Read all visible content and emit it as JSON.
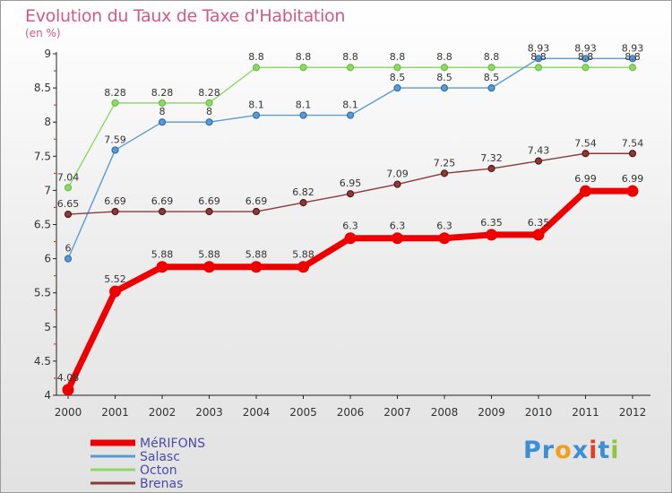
{
  "header": {
    "title": "Evolution du Taux de Taxe d'Habitation",
    "unit": "(en %)"
  },
  "logo": {
    "letters": [
      "P",
      "r",
      "o",
      "x",
      "i",
      "t",
      "i"
    ],
    "colors": [
      "#3b8fd6",
      "#3b8fd6",
      "#f0a020",
      "#3b8fd6",
      "#e0402a",
      "#3b8fd6",
      "#8cc63f"
    ]
  },
  "chart_data": {
    "type": "line",
    "title": "Evolution du Taux de Taxe d'Habitation",
    "ylabel": "(en %)",
    "xlabel": "",
    "x": [
      "2000",
      "2001",
      "2002",
      "2003",
      "2004",
      "2005",
      "2006",
      "2007",
      "2008",
      "2009",
      "2010",
      "2011",
      "2012"
    ],
    "ylim": [
      4,
      9
    ],
    "yticks": [
      "4",
      "4.5",
      "5",
      "5.5",
      "6",
      "6.5",
      "7",
      "7.5",
      "8",
      "8.5",
      "9"
    ],
    "grid": false,
    "legend_position": "bottom-left",
    "series": [
      {
        "name": "MéRIFONS",
        "color": "#ee0000",
        "weight": "thick",
        "values": [
          4.08,
          5.52,
          5.88,
          5.88,
          5.88,
          5.88,
          6.3,
          6.3,
          6.3,
          6.35,
          6.35,
          6.99,
          6.99
        ],
        "labels": [
          "4.08",
          "5.52",
          "5.88",
          "5.88",
          "5.88",
          "5.88",
          "6.3",
          "6.3",
          "6.3",
          "6.35",
          "6.35",
          "6.99",
          "6.99"
        ]
      },
      {
        "name": "Salasc",
        "color": "#5a9bd0",
        "dot": "#2e6fb0",
        "weight": "thin",
        "values": [
          6,
          7.59,
          8,
          8,
          8.1,
          8.1,
          8.1,
          8.5,
          8.5,
          8.5,
          8.93,
          8.93,
          8.93
        ],
        "labels": [
          "6",
          "7.59",
          "8",
          "8",
          "8.1",
          "8.1",
          "8.1",
          "8.5",
          "8.5",
          "8.5",
          "8.93",
          "8.93",
          "8.93"
        ]
      },
      {
        "name": "Octon",
        "color": "#8ed86a",
        "dot": "#6cc13c",
        "weight": "thin",
        "values": [
          7.04,
          8.28,
          8.28,
          8.28,
          8.8,
          8.8,
          8.8,
          8.8,
          8.8,
          8.8,
          8.8,
          8.8,
          8.8
        ],
        "labels": [
          "7.04",
          "8.28",
          "8.28",
          "8.28",
          "8.8",
          "8.8",
          "8.8",
          "8.8",
          "8.8",
          "8.8",
          "8.8",
          "8.8",
          "8.8"
        ]
      },
      {
        "name": "Brenas",
        "color": "#8a3a3a",
        "dot": "#5a1818",
        "weight": "thin",
        "values": [
          6.65,
          6.69,
          6.69,
          6.69,
          6.69,
          6.82,
          6.95,
          7.09,
          7.25,
          7.32,
          7.43,
          7.54,
          7.54
        ],
        "labels": [
          "6.65",
          "6.69",
          "6.69",
          "6.69",
          "6.69",
          "6.82",
          "6.95",
          "7.09",
          "7.25",
          "7.32",
          "7.43",
          "7.54",
          "7.54"
        ]
      }
    ]
  }
}
